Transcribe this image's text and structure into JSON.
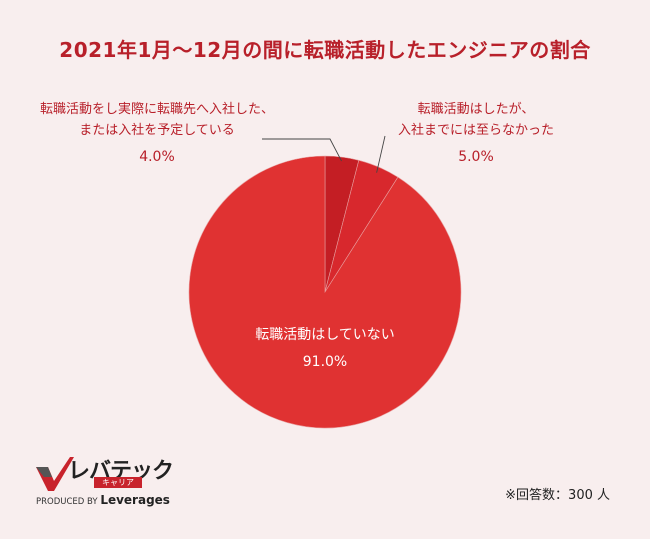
{
  "chart_data": {
    "type": "pie",
    "title": "2021年1月〜12月の間に転職活動したエンジニアの割合",
    "slices": [
      {
        "label_lines": [
          "転職活動をし実際に転職先へ入社した、",
          "または入社を予定している"
        ],
        "value": 4.0,
        "value_label": "4.0%",
        "color": "#c41e24"
      },
      {
        "label_lines": [
          "転職活動はしたが、",
          "入社までには至らなかった"
        ],
        "value": 5.0,
        "value_label": "5.0%",
        "color": "#d8282d"
      },
      {
        "label_lines": [
          "転職活動はしていない"
        ],
        "value": 91.0,
        "value_label": "91.0%",
        "color": "#e03232"
      }
    ],
    "footnote": "※回答数：300 人"
  },
  "logo": {
    "name": "レバテック",
    "sub": "キャリア",
    "produced_by": "PRODUCED BY",
    "brand": "Leverages"
  },
  "colors": {
    "background": "#f8eeee",
    "accent": "#b8202a"
  }
}
